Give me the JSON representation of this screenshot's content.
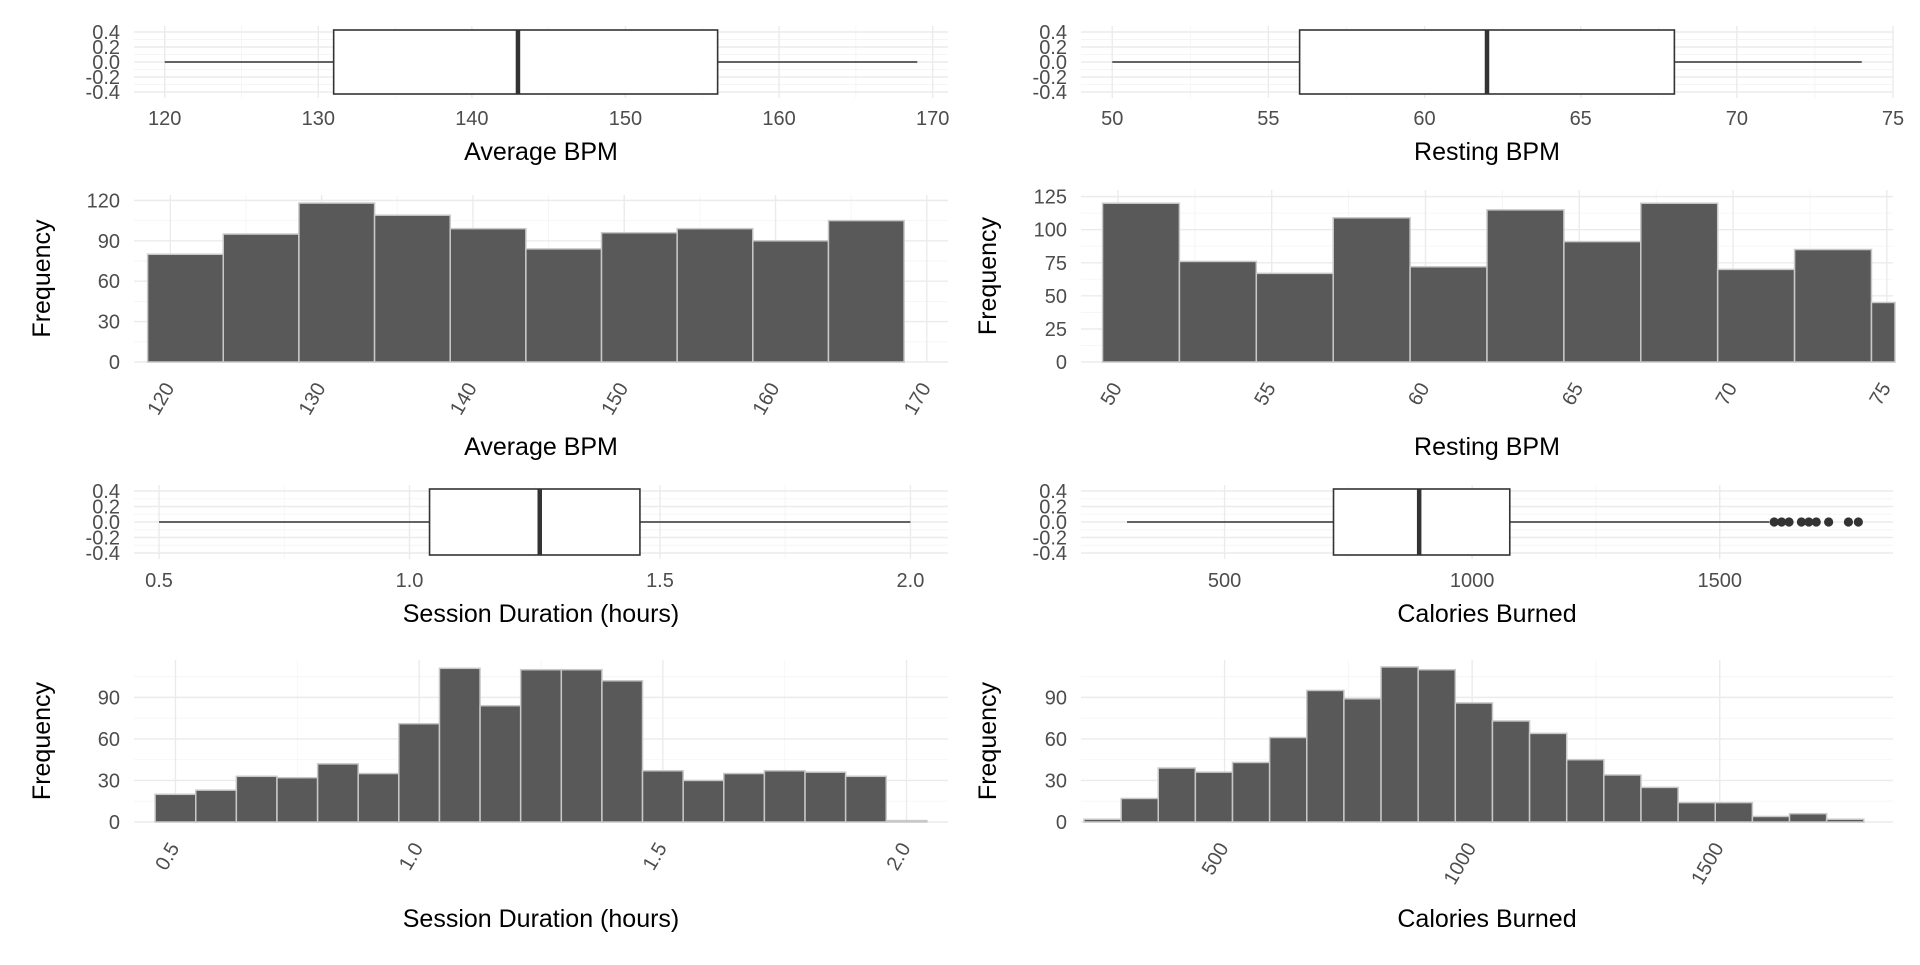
{
  "chart_data": [
    {
      "type": "boxplot",
      "xlabel": "Average BPM",
      "xlim": [
        118,
        171
      ],
      "xticks": [
        120,
        130,
        140,
        150,
        160,
        170
      ],
      "yticks": [
        "0.4",
        "0.2",
        "0.0",
        "-0.2",
        "-0.4"
      ],
      "stats": {
        "min": 120,
        "q1": 131,
        "median": 143,
        "q3": 156,
        "max": 169
      },
      "outliers": []
    },
    {
      "type": "boxplot",
      "xlabel": "Resting BPM",
      "xlim": [
        49,
        75
      ],
      "xticks": [
        50,
        55,
        60,
        65,
        70,
        75
      ],
      "yticks": [
        "0.4",
        "0.2",
        "0.0",
        "-0.2",
        "-0.4"
      ],
      "stats": {
        "min": 50,
        "q1": 56,
        "median": 62,
        "q3": 68,
        "max": 74
      },
      "outliers": []
    },
    {
      "type": "bar",
      "subtype": "histogram",
      "xlabel": "Average BPM",
      "ylabel": "Frequency",
      "xlim": [
        117.6,
        171.4
      ],
      "ylim": [
        0,
        124
      ],
      "xticks": [
        120,
        130,
        140,
        150,
        160,
        170
      ],
      "yticks": [
        0,
        30,
        60,
        90,
        120
      ],
      "xtick_rotation": -60,
      "bin_edges": [
        118.5,
        123.5,
        128.5,
        133.5,
        138.5,
        143.5,
        148.5,
        153.5,
        158.5,
        163.5,
        168.5
      ],
      "values": [
        80,
        95,
        118,
        109,
        99,
        84,
        96,
        99,
        90,
        105
      ]
    },
    {
      "type": "bar",
      "subtype": "histogram",
      "xlabel": "Resting BPM",
      "ylabel": "Frequency",
      "xlim": [
        48.8,
        75.2
      ],
      "ylim": [
        0,
        130
      ],
      "xticks": [
        50,
        55,
        60,
        65,
        70,
        75
      ],
      "yticks": [
        0,
        25,
        50,
        75,
        100,
        125
      ],
      "xtick_rotation": -60,
      "bin_edges": [
        49.5,
        52,
        54.5,
        57,
        59.5,
        62,
        64.5,
        67,
        69.5,
        72,
        74.5,
        77
      ],
      "values": [
        120,
        76,
        67,
        109,
        72,
        115,
        91,
        120,
        70,
        85,
        45
      ]
    },
    {
      "type": "boxplot",
      "xlabel": "Session Duration (hours)",
      "xlim": [
        0.45,
        2.075
      ],
      "xticks": [
        0.5,
        1.0,
        1.5,
        2.0
      ],
      "xtick_labels": [
        "0.5",
        "1.0",
        "1.5",
        "2.0"
      ],
      "yticks": [
        "0.4",
        "0.2",
        "0.0",
        "-0.2",
        "-0.4"
      ],
      "stats": {
        "min": 0.5,
        "q1": 1.04,
        "median": 1.26,
        "q3": 1.46,
        "max": 2.0
      },
      "outliers": []
    },
    {
      "type": "boxplot",
      "xlabel": "Calories Burned",
      "xlim": [
        210,
        1850
      ],
      "xticks": [
        500,
        1000,
        1500
      ],
      "yticks": [
        "0.4",
        "0.2",
        "0.0",
        "-0.2",
        "-0.4"
      ],
      "stats": {
        "min": 303,
        "q1": 720,
        "median": 893,
        "q3": 1076,
        "max": 1600
      },
      "outliers": [
        1610,
        1625,
        1640,
        1665,
        1680,
        1695,
        1720,
        1760,
        1780
      ]
    },
    {
      "type": "bar",
      "subtype": "histogram",
      "xlabel": "Session Duration (hours)",
      "ylabel": "Frequency",
      "xlim": [
        0.415,
        2.085
      ],
      "ylim": [
        0,
        117
      ],
      "xticks": [
        0.5,
        1.0,
        1.5,
        2.0
      ],
      "xtick_labels": [
        "0.5",
        "1.0",
        "1.5",
        "2.0"
      ],
      "yticks": [
        0,
        30,
        60,
        90
      ],
      "xtick_rotation": -60,
      "bin_edges": [
        0.4583,
        0.5417,
        0.625,
        0.7083,
        0.7917,
        0.875,
        0.9583,
        1.0417,
        1.125,
        1.2083,
        1.2917,
        1.375,
        1.4583,
        1.5417,
        1.625,
        1.7083,
        1.7917,
        1.875,
        1.9583,
        2.0417
      ],
      "values": [
        20,
        23,
        33,
        32,
        42,
        35,
        71,
        111,
        84,
        110,
        110,
        102,
        37,
        30,
        35,
        37,
        36,
        33,
        1
      ]
    },
    {
      "type": "bar",
      "subtype": "histogram",
      "xlabel": "Calories Burned",
      "ylabel": "Frequency",
      "xlim": [
        210,
        1850
      ],
      "ylim": [
        0,
        117
      ],
      "xticks": [
        500,
        1000,
        1500
      ],
      "yticks": [
        0,
        30,
        60,
        90
      ],
      "xtick_rotation": -60,
      "bin_edges": [
        216,
        291,
        366,
        441,
        516,
        591,
        666,
        741,
        816,
        891,
        966,
        1041,
        1116,
        1191,
        1266,
        1341,
        1416,
        1491,
        1566,
        1641,
        1716,
        1791
      ],
      "values": [
        2,
        17,
        39,
        36,
        43,
        61,
        95,
        89,
        112,
        110,
        86,
        73,
        64,
        45,
        34,
        25,
        14,
        14,
        4,
        6,
        2
      ]
    }
  ]
}
